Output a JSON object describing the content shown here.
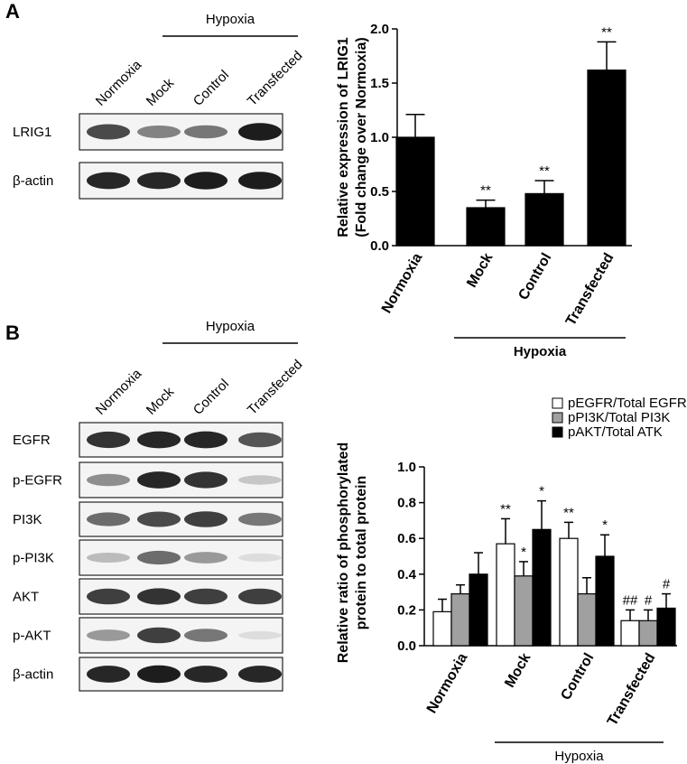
{
  "panel_labels": [
    "A",
    "B"
  ],
  "blots": [
    {
      "lanes": [
        "Normoxia",
        "Mock",
        "Control",
        "Transfected"
      ],
      "group": "Hypoxia",
      "rows": [
        "LRIG1",
        "β-actin"
      ]
    },
    {
      "lanes": [
        "Normoxia",
        "Mock",
        "Control",
        "Transfected"
      ],
      "group": "Hypoxia",
      "rows": [
        "EGFR",
        "p-EGFR",
        "PI3K",
        "p-PI3K",
        "AKT",
        "p-AKT",
        "β-actin"
      ]
    }
  ],
  "chart_data": [
    {
      "type": "bar",
      "y_label": [
        "Relative expression of LRIG1",
        "(Fold change over Normoxia)"
      ],
      "categories": [
        "Normoxia",
        "Mock",
        "Control",
        "Transfected"
      ],
      "group_label": "Hypoxia",
      "values": [
        1.0,
        0.35,
        0.48,
        1.62
      ],
      "errors": [
        0.21,
        0.07,
        0.12,
        0.26
      ],
      "significance": [
        null,
        "**",
        "**",
        "**"
      ],
      "color": "#000000",
      "ylim": [
        0,
        2
      ],
      "yticks": [
        {
          "value": 0,
          "label": "0.0"
        },
        0.5,
        {
          "value": 1,
          "label": "1.0"
        },
        1.5,
        {
          "value": 2,
          "label": "2.0"
        }
      ]
    },
    {
      "type": "grouped_bar",
      "y_label": [
        "Relative ratio of phosphorylated",
        "protein to total protein"
      ],
      "categories": [
        "Normoxia",
        "Mock",
        "Control",
        "Transfected"
      ],
      "group_label": "Hypoxia",
      "series": [
        {
          "name": "pEGFR/Total EGFR",
          "color": "#ffffff",
          "values": [
            0.19,
            0.57,
            0.6,
            0.14
          ],
          "errors": [
            0.07,
            0.14,
            0.09,
            0.06
          ],
          "significance": [
            null,
            "**",
            "**",
            "##"
          ]
        },
        {
          "name": "pPI3K/Total PI3K",
          "color": "#a0a0a0",
          "values": [
            0.29,
            0.39,
            0.29,
            0.14
          ],
          "errors": [
            0.05,
            0.08,
            0.09,
            0.06
          ],
          "significance": [
            null,
            "*",
            null,
            "#"
          ]
        },
        {
          "name": "pAKT/Total ATK",
          "color": "#000000",
          "values": [
            0.4,
            0.65,
            0.5,
            0.21
          ],
          "errors": [
            0.12,
            0.16,
            0.12,
            0.08
          ],
          "significance": [
            null,
            "*",
            "*",
            "#"
          ]
        }
      ],
      "ylim": [
        0,
        1
      ],
      "yticks": [
        {
          "value": 0,
          "label": "0.0"
        },
        0.2,
        0.4,
        0.6,
        0.8,
        {
          "value": 1,
          "label": "1.0"
        }
      ]
    }
  ]
}
